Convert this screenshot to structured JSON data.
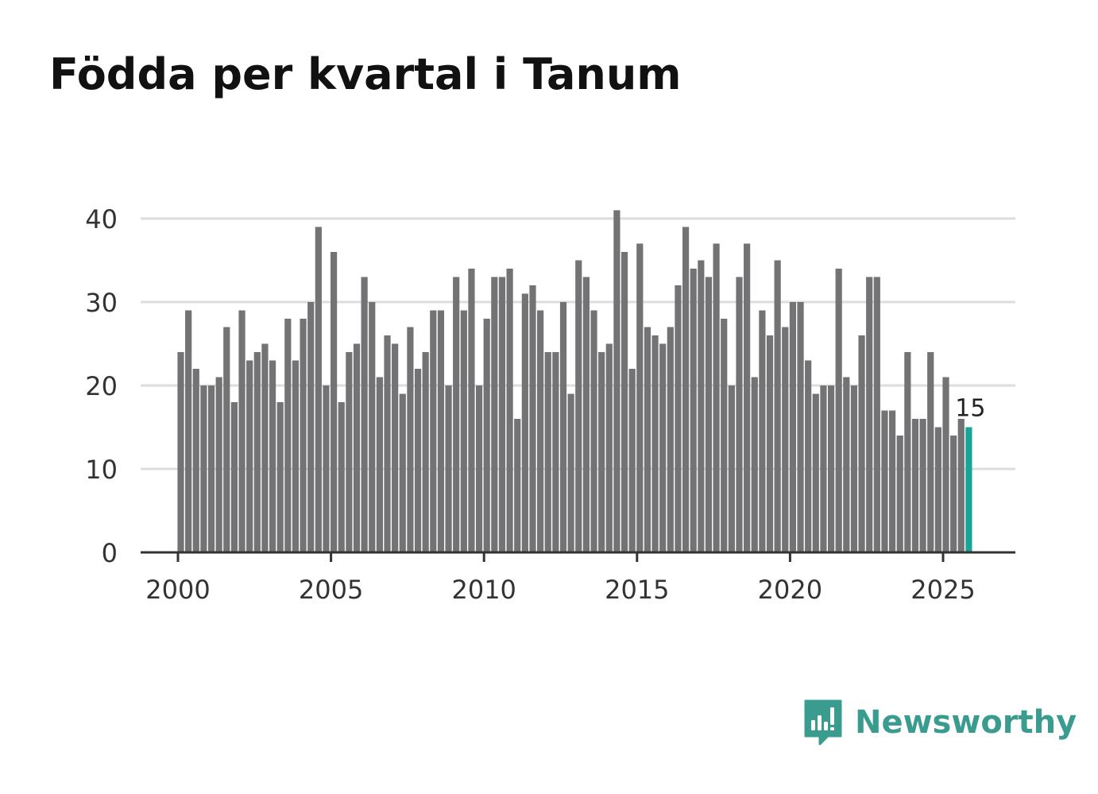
{
  "title": "Födda per kvartal i Tanum",
  "brand": {
    "name": "Newsworthy",
    "icon": "bar-chart-speech-bubble-icon",
    "color": "#3a9b8f"
  },
  "colors": {
    "bar": "#737376",
    "highlight": "#16a596",
    "grid": "#dddddd",
    "baseline": "#333333"
  },
  "chart_data": {
    "type": "bar",
    "title": "Födda per kvartal i Tanum",
    "xlabel": "",
    "ylabel": "",
    "x_start": 2000,
    "x_step": 0.25,
    "xlim": [
      1999.75,
      2027.25
    ],
    "ylim": [
      0,
      42
    ],
    "grid": true,
    "y_ticks": [
      0,
      10,
      20,
      30,
      40
    ],
    "x_ticks": [
      2000,
      2005,
      2010,
      2015,
      2020,
      2025
    ],
    "values": [
      24,
      29,
      22,
      20,
      20,
      21,
      27,
      18,
      29,
      23,
      24,
      25,
      23,
      18,
      28,
      23,
      28,
      30,
      39,
      20,
      36,
      18,
      24,
      25,
      33,
      30,
      21,
      26,
      25,
      19,
      27,
      22,
      24,
      29,
      29,
      20,
      33,
      29,
      34,
      20,
      28,
      33,
      33,
      34,
      16,
      31,
      32,
      29,
      24,
      24,
      30,
      19,
      35,
      33,
      29,
      24,
      25,
      41,
      36,
      22,
      37,
      27,
      26,
      25,
      27,
      32,
      39,
      34,
      35,
      33,
      37,
      28,
      20,
      33,
      37,
      21,
      29,
      26,
      35,
      27,
      30,
      30,
      23,
      19,
      20,
      20,
      34,
      21,
      20,
      26,
      33,
      33,
      17,
      17,
      14,
      24,
      16,
      16,
      24,
      15,
      21,
      14,
      16,
      15
    ],
    "highlight_index": 103,
    "annotation": "15"
  }
}
